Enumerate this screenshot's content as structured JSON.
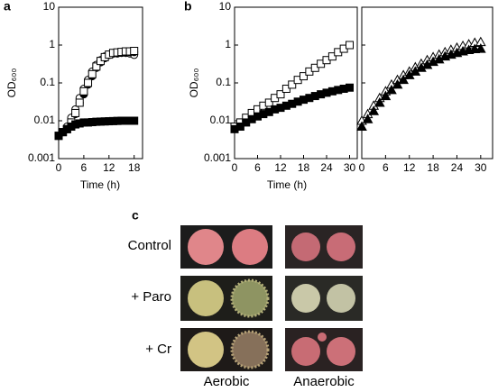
{
  "chart_data": [
    {
      "type": "scatter",
      "panel_label": "a",
      "ylabel": "OD₆₀₀",
      "xlabel": "Time (h)",
      "log_y": true,
      "xlim": [
        0,
        20
      ],
      "xticks": [
        0,
        6,
        12,
        18
      ],
      "ylim": [
        0.001,
        10
      ],
      "yticks": [
        0.001,
        0.01,
        0.1,
        1,
        10
      ],
      "show_ytick_labels": true,
      "x": [
        0,
        1,
        2,
        3,
        4,
        5,
        6,
        7,
        8,
        9,
        10,
        11,
        12,
        13,
        14,
        15,
        16,
        17,
        18
      ],
      "series": [
        {
          "marker": "circle",
          "filled": false,
          "color": "#000000",
          "values": [
            0.004,
            0.005,
            0.007,
            0.012,
            0.02,
            0.04,
            0.07,
            0.12,
            0.2,
            0.3,
            0.4,
            0.5,
            0.55,
            0.6,
            0.6,
            0.62,
            0.62,
            0.6,
            0.55
          ]
        },
        {
          "marker": "circle",
          "filled": true,
          "color": "#000000",
          "values": [
            0.004,
            0.005,
            0.006,
            0.009,
            0.015,
            0.03,
            0.05,
            0.09,
            0.15,
            0.25,
            0.35,
            0.45,
            0.55,
            0.6,
            0.62,
            0.63,
            0.65,
            0.65,
            0.65
          ]
        },
        {
          "marker": "square",
          "filled": false,
          "color": "#000000",
          "values": [
            0.004,
            0.005,
            0.006,
            0.009,
            0.016,
            0.03,
            0.06,
            0.1,
            0.17,
            0.27,
            0.38,
            0.48,
            0.56,
            0.62,
            0.64,
            0.66,
            0.68,
            0.68,
            0.7
          ]
        },
        {
          "marker": "square",
          "filled": true,
          "color": "#000000",
          "values": [
            0.004,
            0.005,
            0.006,
            0.007,
            0.008,
            0.0085,
            0.009,
            0.009,
            0.0092,
            0.0094,
            0.0095,
            0.0096,
            0.0097,
            0.0098,
            0.0099,
            0.01,
            0.01,
            0.01,
            0.01
          ]
        }
      ]
    },
    {
      "type": "scatter",
      "panel_label": "b",
      "ylabel": "OD₆₀₀",
      "xlabel": "Time (h)",
      "log_y": true,
      "xlim": [
        0,
        32
      ],
      "xticks": [
        0,
        6,
        12,
        18,
        24,
        30
      ],
      "ylim": [
        0.001,
        10
      ],
      "yticks": [
        0.001,
        0.01,
        0.1,
        1,
        10
      ],
      "show_ytick_labels": true,
      "x": [
        0,
        1.5,
        3,
        4.5,
        6,
        7.5,
        9,
        10.5,
        12,
        13.5,
        15,
        16.5,
        18,
        19.5,
        21,
        22.5,
        24,
        25.5,
        27,
        28.5,
        30
      ],
      "series": [
        {
          "marker": "square",
          "filled": false,
          "color": "#000000",
          "values": [
            0.007,
            0.009,
            0.012,
            0.016,
            0.02,
            0.025,
            0.03,
            0.04,
            0.05,
            0.07,
            0.09,
            0.12,
            0.15,
            0.2,
            0.25,
            0.32,
            0.4,
            0.5,
            0.65,
            0.8,
            1.0
          ]
        },
        {
          "marker": "square",
          "filled": true,
          "color": "#000000",
          "values": [
            0.006,
            0.007,
            0.009,
            0.011,
            0.013,
            0.015,
            0.017,
            0.02,
            0.022,
            0.025,
            0.028,
            0.032,
            0.036,
            0.04,
            0.045,
            0.05,
            0.055,
            0.06,
            0.065,
            0.07,
            0.075
          ]
        }
      ]
    },
    {
      "type": "scatter",
      "log_y": true,
      "xlim": [
        0,
        33
      ],
      "xticks": [
        0,
        6,
        12,
        18,
        24,
        30
      ],
      "ylim": [
        0.001,
        10
      ],
      "yticks": [
        0.001,
        0.01,
        0.1,
        1,
        10
      ],
      "show_ytick_labels": false,
      "x": [
        0,
        1.5,
        3,
        4.5,
        6,
        7.5,
        9,
        10.5,
        12,
        13.5,
        15,
        16.5,
        18,
        19.5,
        21,
        22.5,
        24,
        25.5,
        27,
        28.5,
        30
      ],
      "series": [
        {
          "marker": "triangle",
          "filled": false,
          "color": "#000000",
          "values": [
            0.01,
            0.015,
            0.025,
            0.04,
            0.06,
            0.09,
            0.12,
            0.16,
            0.2,
            0.26,
            0.32,
            0.4,
            0.48,
            0.56,
            0.65,
            0.75,
            0.85,
            0.95,
            1.05,
            1.15,
            1.2
          ]
        },
        {
          "marker": "triangle",
          "filled": true,
          "color": "#000000",
          "values": [
            0.007,
            0.011,
            0.018,
            0.03,
            0.045,
            0.065,
            0.09,
            0.12,
            0.16,
            0.2,
            0.25,
            0.3,
            0.36,
            0.42,
            0.5,
            0.56,
            0.62,
            0.68,
            0.74,
            0.78,
            0.8
          ]
        }
      ]
    }
  ],
  "panel_c": {
    "label": "c",
    "rows": [
      "Control",
      "+ Paro",
      "+ Cr"
    ],
    "columns": [
      "Aerobic",
      "Anaerobic"
    ]
  }
}
